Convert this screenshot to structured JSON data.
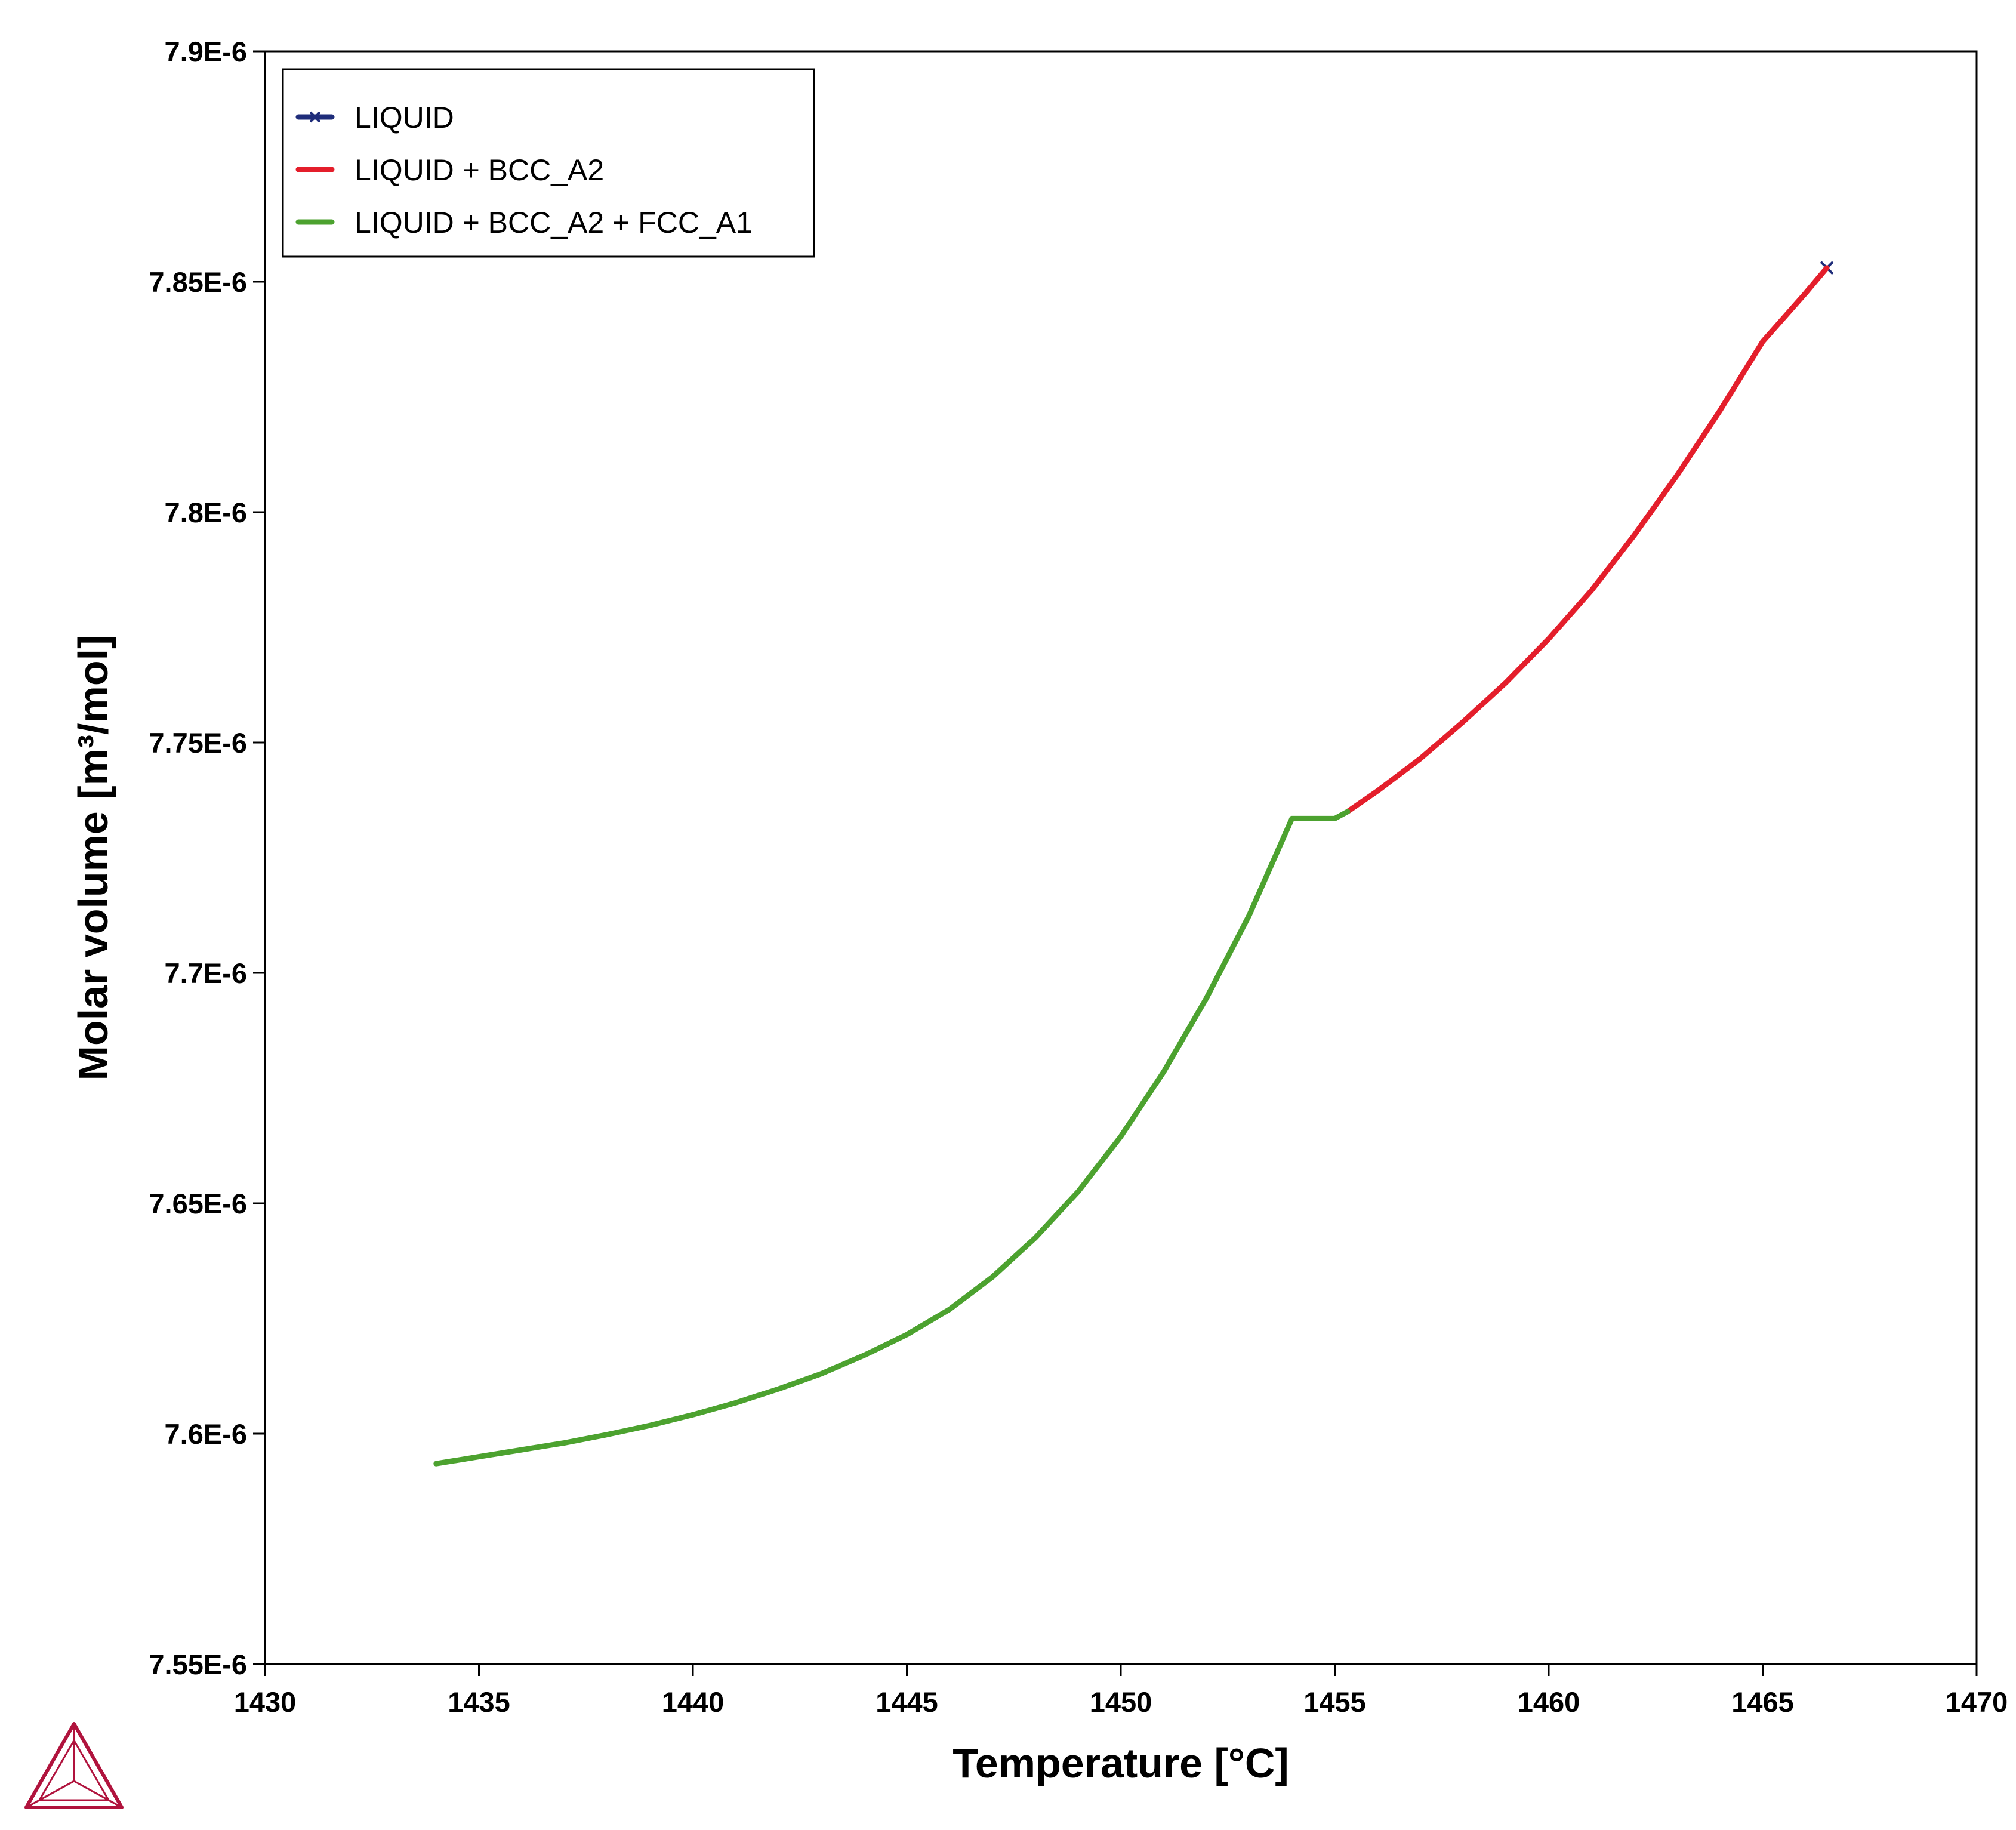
{
  "chart_data": {
    "type": "line",
    "title": "",
    "xlabel": "Temperature [°C]",
    "ylabel": "Molar volume [m³/mol]",
    "xlim": [
      1430,
      1470
    ],
    "ylim": [
      7.55e-06,
      7.9e-06
    ],
    "x_ticks": [
      "1430",
      "1435",
      "1440",
      "1445",
      "1450",
      "1455",
      "1460",
      "1465",
      "1470"
    ],
    "y_ticks": [
      "7.55E-6",
      "7.6E-6",
      "7.65E-6",
      "7.7E-6",
      "7.75E-6",
      "7.8E-6",
      "7.85E-6",
      "7.9E-6"
    ],
    "x_tick_values": [
      1430,
      1435,
      1440,
      1445,
      1450,
      1455,
      1460,
      1465,
      1470
    ],
    "y_tick_values": [
      7.55e-06,
      7.6e-06,
      7.65e-06,
      7.7e-06,
      7.75e-06,
      7.8e-06,
      7.85e-06,
      7.9e-06
    ],
    "grid": false,
    "legend_position": "top-left",
    "series": [
      {
        "name": "LIQUID",
        "color": "#1f2d7a",
        "marker": "x",
        "x": [
          1466.5
        ],
        "y": [
          7.853e-06
        ]
      },
      {
        "name": "LIQUID + BCC_A2",
        "color": "#e41e2b",
        "x": [
          1455.3,
          1456.0,
          1457.0,
          1458.0,
          1459.0,
          1460.0,
          1461.0,
          1462.0,
          1463.0,
          1464.0,
          1465.0,
          1466.0,
          1466.5
        ],
        "y": [
          7.735e-06,
          7.7395e-06,
          7.7465e-06,
          7.7545e-06,
          7.763e-06,
          7.7725e-06,
          7.783e-06,
          7.795e-06,
          7.808e-06,
          7.822e-06,
          7.837e-06,
          7.8475e-06,
          7.853e-06
        ]
      },
      {
        "name": "LIQUID + BCC_A2 + FCC_A1",
        "color": "#4ca22f",
        "x": [
          1434.0,
          1435.0,
          1436.0,
          1437.0,
          1438.0,
          1439.0,
          1440.0,
          1441.0,
          1442.0,
          1443.0,
          1444.0,
          1445.0,
          1446.0,
          1447.0,
          1448.0,
          1449.0,
          1450.0,
          1451.0,
          1452.0,
          1453.0,
          1454.0,
          1455.0,
          1455.3
        ],
        "y": [
          7.5935e-06,
          7.595e-06,
          7.5965e-06,
          7.598e-06,
          7.5998e-06,
          7.6018e-06,
          7.6041e-06,
          7.6067e-06,
          7.6097e-06,
          7.613e-06,
          7.617e-06,
          7.6215e-06,
          7.627e-06,
          7.634e-06,
          7.6425e-06,
          7.6525e-06,
          7.6645e-06,
          7.6785e-06,
          7.6945e-06,
          7.7125e-06,
          7.7335e-06,
          7.7335e-06,
          7.735e-06
        ]
      }
    ]
  },
  "logo": {
    "name": "thermo-calc-logo",
    "color": "#b0133d"
  }
}
